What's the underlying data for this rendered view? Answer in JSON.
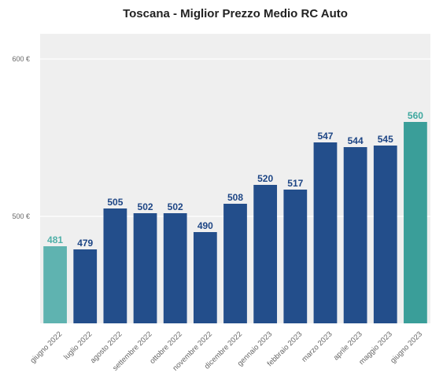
{
  "chart_data": {
    "type": "bar",
    "title": "Toscana - Miglior Prezzo Medio RC Auto",
    "categories": [
      "giugno 2022",
      "luglio 2022",
      "agosto 2022",
      "settembre 2022",
      "ottobre 2022",
      "novembre 2022",
      "dicembre 2022",
      "gennaio 2023",
      "febbraio 2023",
      "marzo 2023",
      "aprile 2023",
      "maggio 2023",
      "giugno 2023"
    ],
    "values": [
      481,
      479,
      505,
      502,
      502,
      490,
      508,
      520,
      517,
      547,
      544,
      545,
      560
    ],
    "value_labels": [
      "481",
      "479",
      "505",
      "502",
      "502",
      "490",
      "508",
      "520",
      "517",
      "547",
      "544",
      "545",
      "560"
    ],
    "bar_colors": [
      "#5fb3b0",
      "#234e8b",
      "#234e8b",
      "#234e8b",
      "#234e8b",
      "#234e8b",
      "#234e8b",
      "#234e8b",
      "#234e8b",
      "#234e8b",
      "#234e8b",
      "#234e8b",
      "#3a9e99"
    ],
    "label_colors": [
      "#4fb0a8",
      "#1d4585",
      "#1d4585",
      "#1d4585",
      "#1d4585",
      "#1d4585",
      "#1d4585",
      "#1d4585",
      "#1d4585",
      "#1d4585",
      "#1d4585",
      "#1d4585",
      "#3fa89f"
    ],
    "yticks": [
      500,
      600
    ],
    "ytick_labels": [
      "500 €",
      "600 €"
    ],
    "ylim": [
      432,
      616
    ],
    "xlabel": "",
    "ylabel": "",
    "grid": true,
    "legend": "none",
    "background_color": "#efefef",
    "grid_color": "#ffffff"
  }
}
